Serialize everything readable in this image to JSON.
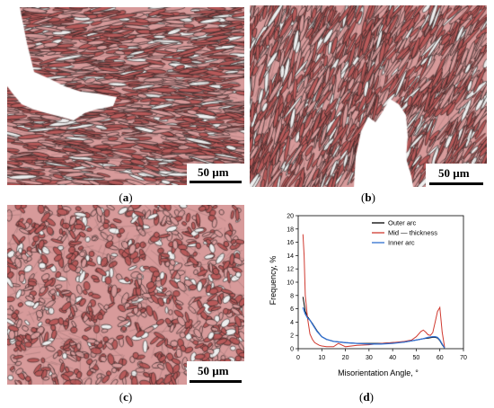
{
  "figure": {
    "panels": [
      {
        "id": "a",
        "caption_open": "(",
        "caption_letter": "a",
        "caption_close": ")",
        "scale_label": "50 µm"
      },
      {
        "id": "b",
        "caption_open": "(",
        "caption_letter": "b",
        "caption_close": ")",
        "scale_label": "50 µm"
      },
      {
        "id": "c",
        "caption_open": "(",
        "caption_letter": "c",
        "caption_close": ")",
        "scale_label": "50 µm"
      },
      {
        "id": "d",
        "caption_open": "(",
        "caption_letter": "d",
        "caption_close": ")"
      }
    ],
    "colors": {
      "grain_red": "#b85a5a",
      "grain_pink": "#d79a9a",
      "grain_light": "#eeeeee",
      "boundary": "#2a2020"
    }
  },
  "chart_data": {
    "type": "line",
    "xlabel": "Misorientation Angle, °",
    "ylabel": "Frequency, %",
    "xlim": [
      0,
      70
    ],
    "ylim": [
      0,
      20
    ],
    "xticks": [
      0,
      10,
      20,
      30,
      40,
      50,
      60,
      70
    ],
    "yticks": [
      0,
      2,
      4,
      6,
      8,
      10,
      12,
      14,
      16,
      18,
      20
    ],
    "legend_position": "top-right",
    "series": [
      {
        "name": "Outer arc",
        "color": "#000000",
        "x": [
          2,
          3,
          4,
          5,
          6,
          8,
          10,
          12,
          15,
          20,
          25,
          30,
          35,
          40,
          45,
          50,
          53,
          55,
          57,
          58,
          59,
          60,
          61,
          62
        ],
        "y": [
          7.8,
          5.6,
          4.8,
          4.3,
          3.8,
          2.7,
          1.8,
          1.4,
          1.1,
          0.9,
          0.8,
          0.8,
          0.8,
          0.9,
          1.0,
          1.3,
          1.5,
          1.6,
          1.7,
          1.7,
          1.6,
          1.2,
          0.6,
          0.1
        ]
      },
      {
        "name": "Mid — thickness",
        "color": "#d03a30",
        "x": [
          2,
          2.5,
          3,
          4,
          5,
          6,
          7,
          8,
          9,
          10,
          12,
          15,
          17,
          20,
          25,
          30,
          35,
          40,
          45,
          48,
          50,
          52,
          53,
          54,
          55,
          56,
          57,
          58,
          59,
          60,
          61,
          62
        ],
        "y": [
          17.2,
          14.0,
          8.0,
          4.5,
          2.2,
          1.4,
          0.9,
          0.7,
          0.5,
          0.4,
          0.3,
          0.3,
          0.8,
          0.3,
          0.5,
          0.6,
          0.8,
          0.9,
          1.1,
          1.3,
          1.8,
          2.6,
          2.8,
          2.5,
          2.1,
          2.0,
          2.4,
          4.0,
          5.6,
          6.2,
          2.5,
          0.2
        ]
      },
      {
        "name": "Inner arc",
        "color": "#2f6fd0",
        "x": [
          2,
          3,
          4,
          5,
          6,
          8,
          10,
          12,
          15,
          20,
          25,
          30,
          35,
          40,
          45,
          50,
          53,
          55,
          57,
          58,
          59,
          60,
          61,
          62
        ],
        "y": [
          6.2,
          5.2,
          4.6,
          4.3,
          3.7,
          2.6,
          1.8,
          1.4,
          1.1,
          0.9,
          0.8,
          0.7,
          0.7,
          0.8,
          1.0,
          1.3,
          1.5,
          1.7,
          1.8,
          1.8,
          1.7,
          1.3,
          0.7,
          0.1
        ]
      }
    ]
  }
}
